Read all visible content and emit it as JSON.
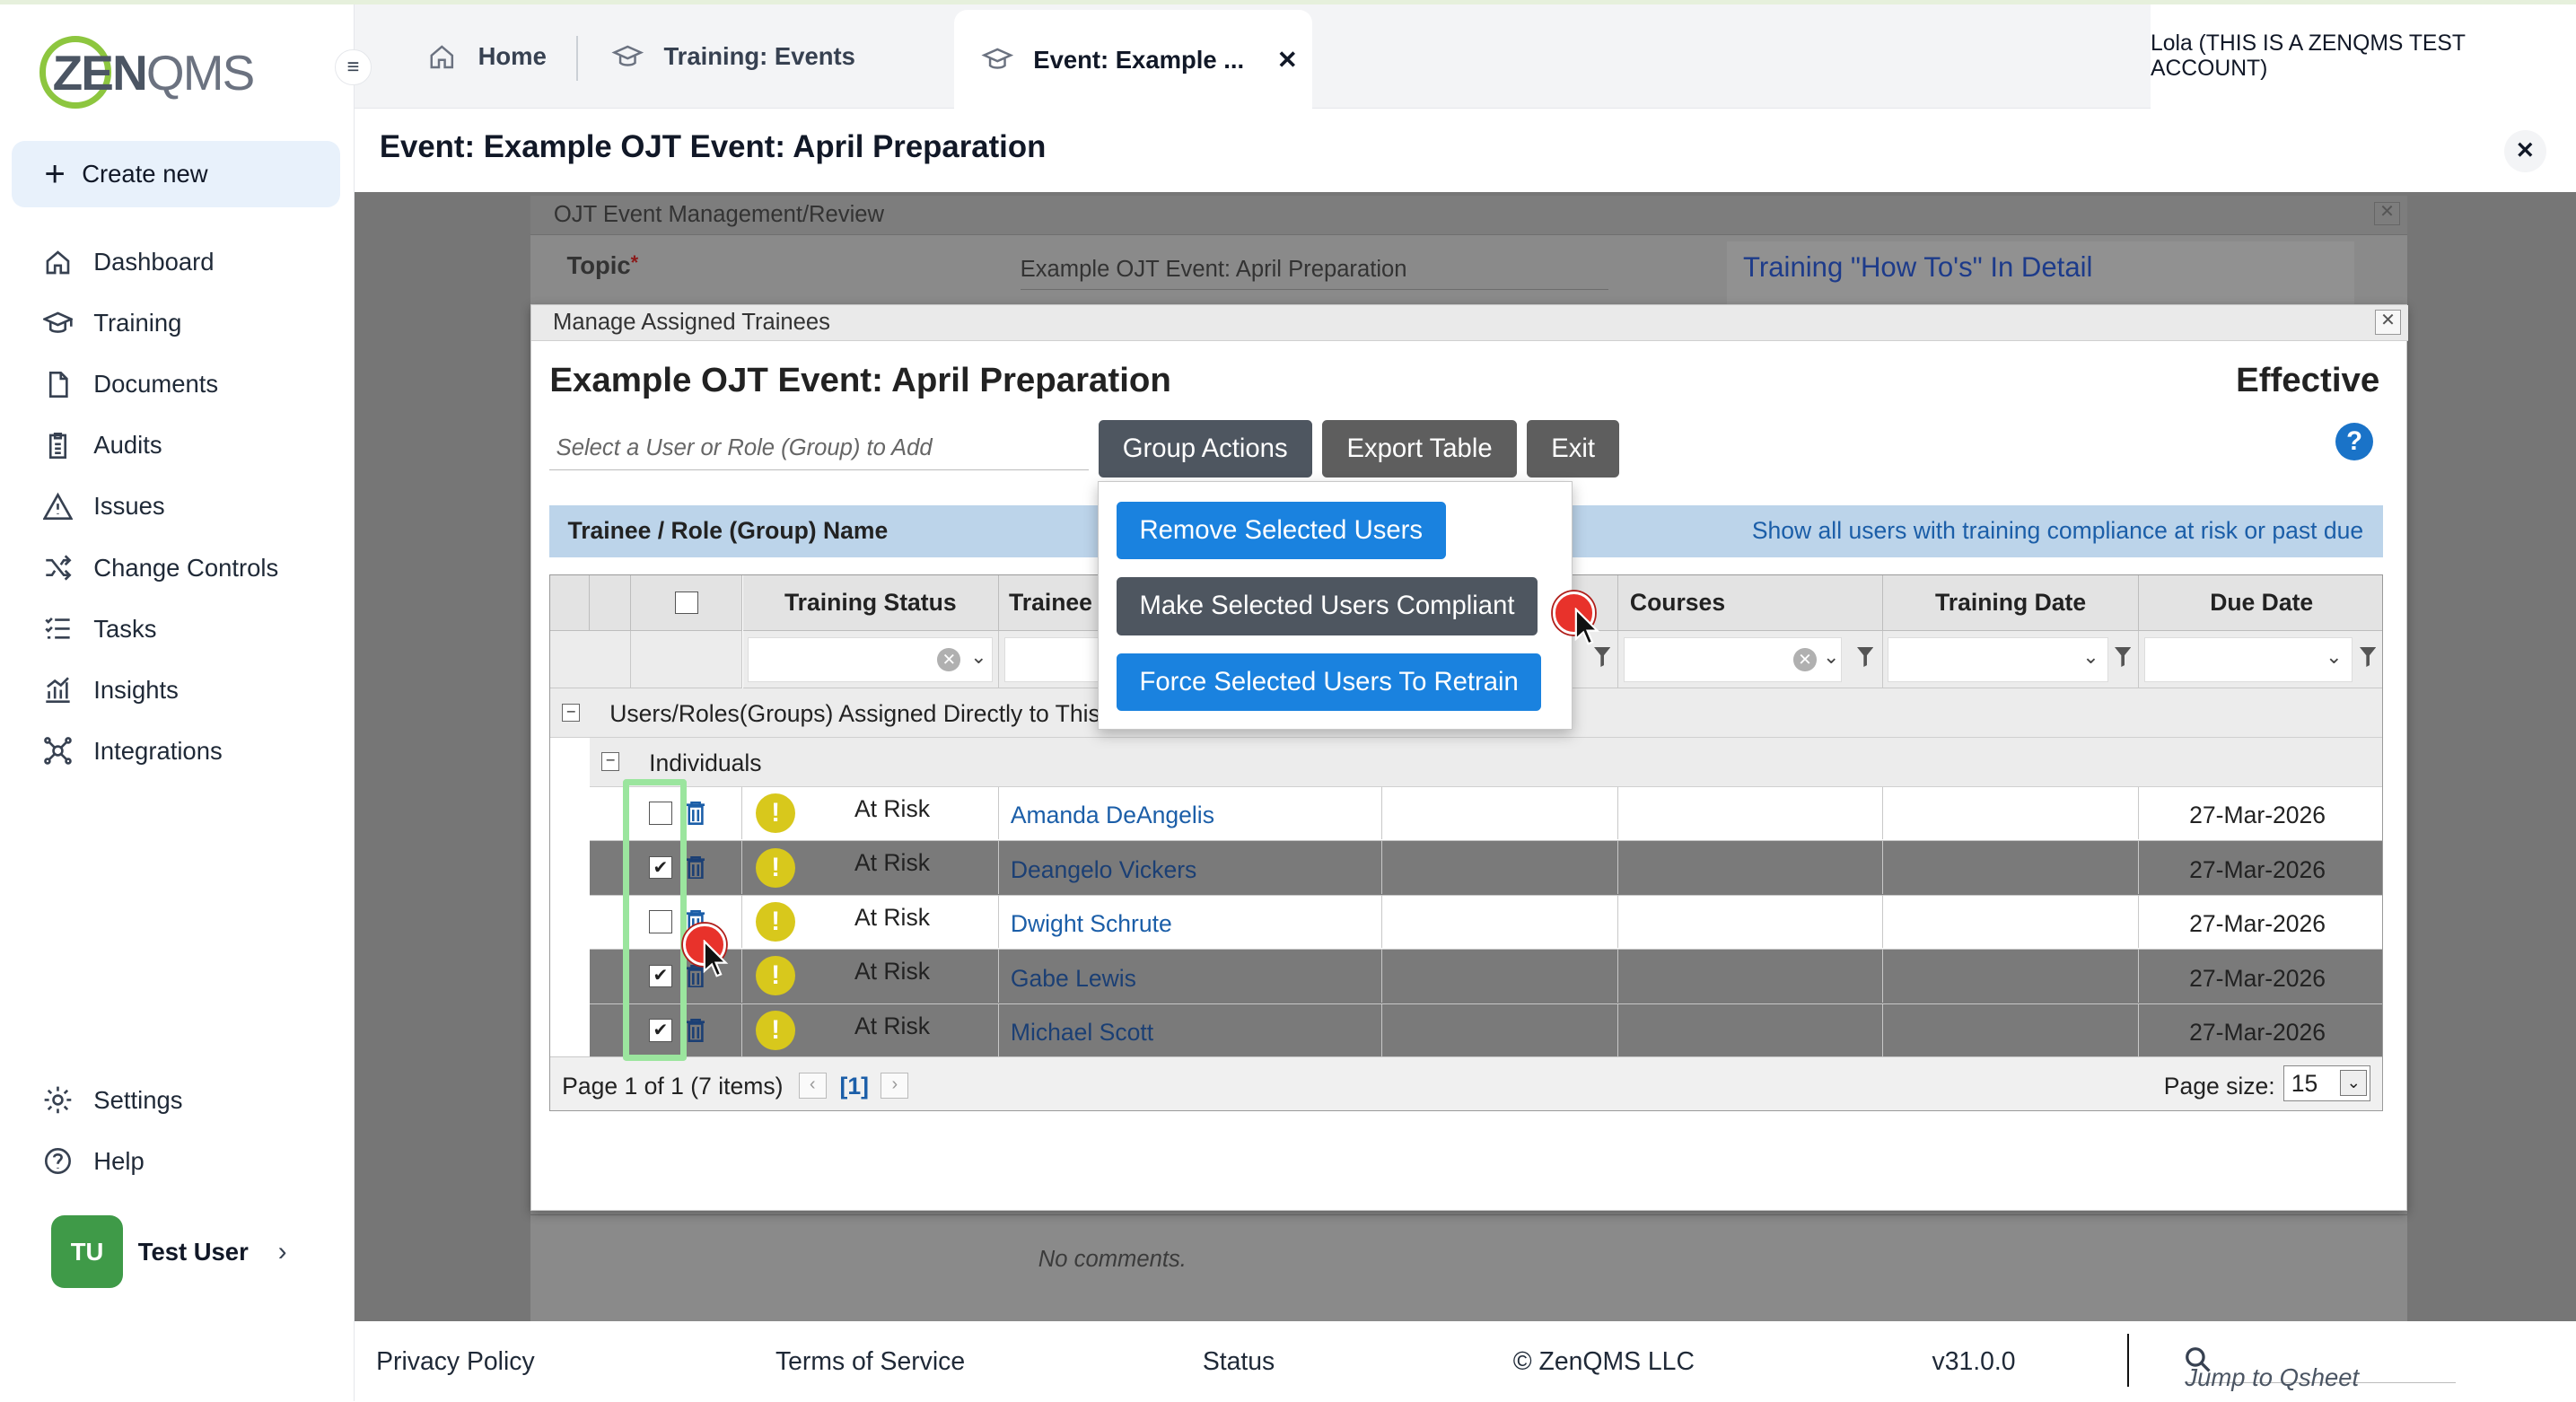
{
  "app": {
    "logo_text_bold": "ZEN",
    "logo_text_thin": "QMS",
    "create_new": "Create new"
  },
  "sidebar": {
    "items": [
      {
        "label": "Dashboard",
        "icon": "home-icon"
      },
      {
        "label": "Training",
        "icon": "graduation-cap-icon"
      },
      {
        "label": "Documents",
        "icon": "document-icon"
      },
      {
        "label": "Audits",
        "icon": "clipboard-icon"
      },
      {
        "label": "Issues",
        "icon": "warning-triangle-icon"
      },
      {
        "label": "Change Controls",
        "icon": "shuffle-icon"
      },
      {
        "label": "Tasks",
        "icon": "checklist-icon"
      },
      {
        "label": "Insights",
        "icon": "chart-icon"
      },
      {
        "label": "Integrations",
        "icon": "network-icon"
      }
    ],
    "bottom": [
      {
        "label": "Settings",
        "icon": "gear-icon"
      },
      {
        "label": "Help",
        "icon": "help-circle-icon"
      }
    ],
    "user": {
      "initials": "TU",
      "name": "Test User"
    }
  },
  "tabs": {
    "home": "Home",
    "events": "Training: Events",
    "active": "Event: Example ...",
    "account": "Lola (THIS IS A ZENQMS TEST ACCOUNT)"
  },
  "page": {
    "title": "Event: Example OJT Event: April Preparation"
  },
  "background_dialog": {
    "header": "OJT Event Management/Review",
    "topic_label": "Topic",
    "topic_required": "*",
    "topic_value": "Example OJT Event: April Preparation",
    "howto_link": "Training \"How To's\" In Detail",
    "comments": "No comments."
  },
  "modal": {
    "header": "Manage Assigned Trainees",
    "title": "Example OJT Event: April Preparation",
    "status": "Effective",
    "user_placeholder": "Select a User or Role (Group) to Add",
    "buttons": {
      "group_actions": "Group Actions",
      "export": "Export Table",
      "exit": "Exit"
    },
    "bar_label": "Trainee / Role (Group) Name",
    "bar_link": "Show all users with training compliance at risk or past due",
    "menu": [
      "Remove Selected Users",
      "Make Selected Users Compliant",
      "Force Selected Users To Retrain"
    ],
    "columns": {
      "status": "Training Status",
      "trainee": "Trainee",
      "courses": "Courses",
      "training_date": "Training Date",
      "due_date": "Due Date"
    },
    "group_top": "Users/Roles(Groups) Assigned Directly to This",
    "group_sub": "Individuals",
    "rows": [
      {
        "checked": false,
        "status": "At Risk",
        "name": "Amanda DeAngelis",
        "due": "27-Mar-2026"
      },
      {
        "checked": true,
        "status": "At Risk",
        "name": "Deangelo Vickers",
        "due": "27-Mar-2026"
      },
      {
        "checked": false,
        "status": "At Risk",
        "name": "Dwight Schrute",
        "due": "27-Mar-2026"
      },
      {
        "checked": true,
        "status": "At Risk",
        "name": "Gabe Lewis",
        "due": "27-Mar-2026"
      },
      {
        "checked": true,
        "status": "At Risk",
        "name": "Michael Scott",
        "due": "27-Mar-2026"
      }
    ],
    "pager": {
      "info": "Page 1 of 1 (7 items)",
      "current": "[1]",
      "size_label": "Page size:",
      "size_value": "15"
    }
  },
  "footer": {
    "privacy": "Privacy Policy",
    "terms": "Terms of Service",
    "status": "Status",
    "copyright": "© ZenQMS LLC",
    "version": "v31.0.0",
    "jump_placeholder": "Jump to Qsheet"
  },
  "colors": {
    "brand_green": "#8dc63f",
    "primary_blue": "#1a82df",
    "link_blue": "#1b5ea8",
    "warning_yellow": "#d8c81c",
    "click_marker": "#e8322b"
  }
}
